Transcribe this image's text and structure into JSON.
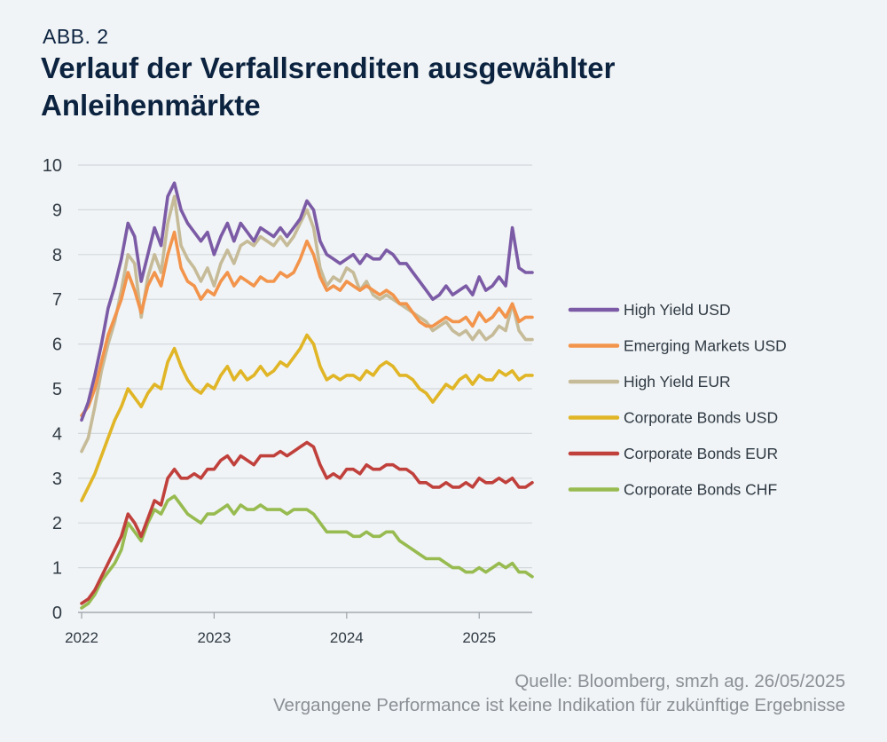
{
  "header": {
    "label": "ABB. 2",
    "title": "Verlauf der Verfallsrenditen ausgewählter Anleihenmärkte"
  },
  "footer": {
    "source": "Quelle: Bloomberg, smzh ag. 26/05/2025",
    "disclaimer": "Vergangene Performance ist keine Indikation für zukünftige Ergebnisse"
  },
  "chart_data": {
    "type": "line",
    "title": "Verlauf der Verfallsrenditen ausgewählter Anleihenmärkte",
    "xlabel": "",
    "ylabel": "",
    "ylim": [
      0,
      10
    ],
    "yticks": [
      "0",
      "1",
      "2",
      "3",
      "4",
      "5",
      "6",
      "7",
      "8",
      "9",
      "10"
    ],
    "xlim": [
      2022.0,
      2025.4
    ],
    "xticks": [
      {
        "value": 2022.0,
        "label": "2022"
      },
      {
        "value": 2023.0,
        "label": "2023"
      },
      {
        "value": 2024.0,
        "label": "2024"
      },
      {
        "value": 2025.0,
        "label": "2025"
      }
    ],
    "grid": true,
    "legend_position": "right",
    "x": [
      2022.0,
      2022.05,
      2022.1,
      2022.15,
      2022.2,
      2022.25,
      2022.3,
      2022.35,
      2022.4,
      2022.45,
      2022.5,
      2022.55,
      2022.6,
      2022.65,
      2022.7,
      2022.75,
      2022.8,
      2022.85,
      2022.9,
      2022.95,
      2023.0,
      2023.05,
      2023.1,
      2023.15,
      2023.2,
      2023.25,
      2023.3,
      2023.35,
      2023.4,
      2023.45,
      2023.5,
      2023.55,
      2023.6,
      2023.65,
      2023.7,
      2023.75,
      2023.8,
      2023.85,
      2023.9,
      2023.95,
      2024.0,
      2024.05,
      2024.1,
      2024.15,
      2024.2,
      2024.25,
      2024.3,
      2024.35,
      2024.4,
      2024.45,
      2024.5,
      2024.55,
      2024.6,
      2024.65,
      2024.7,
      2024.75,
      2024.8,
      2024.85,
      2024.9,
      2024.95,
      2025.0,
      2025.05,
      2025.1,
      2025.15,
      2025.2,
      2025.25,
      2025.3,
      2025.35,
      2025.4
    ],
    "series": [
      {
        "name": "High Yield USD",
        "color": "#7c5ba6",
        "values": [
          4.3,
          4.7,
          5.3,
          6.0,
          6.8,
          7.3,
          7.9,
          8.7,
          8.4,
          7.4,
          8.0,
          8.6,
          8.2,
          9.3,
          9.6,
          9.0,
          8.7,
          8.5,
          8.3,
          8.5,
          8.0,
          8.4,
          8.7,
          8.3,
          8.7,
          8.5,
          8.3,
          8.6,
          8.5,
          8.4,
          8.6,
          8.4,
          8.6,
          8.8,
          9.2,
          9.0,
          8.3,
          8.0,
          7.9,
          7.8,
          7.9,
          8.0,
          7.8,
          8.0,
          7.9,
          7.9,
          8.1,
          8.0,
          7.8,
          7.8,
          7.6,
          7.4,
          7.2,
          7.0,
          7.1,
          7.3,
          7.1,
          7.2,
          7.3,
          7.1,
          7.5,
          7.2,
          7.3,
          7.5,
          7.3,
          8.6,
          7.7,
          7.6,
          7.6
        ]
      },
      {
        "name": "Emerging Markets USD",
        "color": "#f2944b",
        "values": [
          4.4,
          4.6,
          5.0,
          5.6,
          6.2,
          6.6,
          7.0,
          7.6,
          7.2,
          6.7,
          7.3,
          7.6,
          7.3,
          8.0,
          8.5,
          7.7,
          7.4,
          7.3,
          7.0,
          7.2,
          7.1,
          7.4,
          7.6,
          7.3,
          7.5,
          7.4,
          7.3,
          7.5,
          7.4,
          7.4,
          7.6,
          7.5,
          7.6,
          7.9,
          8.3,
          8.0,
          7.5,
          7.2,
          7.3,
          7.2,
          7.4,
          7.3,
          7.2,
          7.3,
          7.2,
          7.1,
          7.2,
          7.1,
          6.9,
          6.9,
          6.7,
          6.5,
          6.4,
          6.4,
          6.5,
          6.6,
          6.5,
          6.5,
          6.6,
          6.4,
          6.7,
          6.5,
          6.6,
          6.8,
          6.6,
          6.9,
          6.5,
          6.6,
          6.6
        ]
      },
      {
        "name": "High Yield EUR",
        "color": "#c6bb98",
        "values": [
          3.6,
          3.9,
          4.6,
          5.4,
          6.0,
          6.5,
          7.2,
          8.0,
          7.8,
          6.6,
          7.5,
          8.0,
          7.6,
          8.7,
          9.3,
          8.2,
          7.9,
          7.7,
          7.4,
          7.7,
          7.3,
          7.8,
          8.1,
          7.8,
          8.2,
          8.3,
          8.2,
          8.4,
          8.3,
          8.2,
          8.4,
          8.2,
          8.4,
          8.7,
          9.0,
          8.6,
          7.7,
          7.3,
          7.5,
          7.4,
          7.7,
          7.6,
          7.2,
          7.4,
          7.1,
          7.0,
          7.1,
          7.0,
          6.9,
          6.8,
          6.7,
          6.6,
          6.5,
          6.3,
          6.4,
          6.5,
          6.3,
          6.2,
          6.3,
          6.1,
          6.3,
          6.1,
          6.2,
          6.4,
          6.3,
          6.9,
          6.3,
          6.1,
          6.1
        ]
      },
      {
        "name": "Corporate Bonds USD",
        "color": "#e0b526",
        "values": [
          2.5,
          2.8,
          3.1,
          3.5,
          3.9,
          4.3,
          4.6,
          5.0,
          4.8,
          4.6,
          4.9,
          5.1,
          5.0,
          5.6,
          5.9,
          5.5,
          5.2,
          5.0,
          4.9,
          5.1,
          5.0,
          5.3,
          5.5,
          5.2,
          5.4,
          5.2,
          5.3,
          5.5,
          5.3,
          5.4,
          5.6,
          5.5,
          5.7,
          5.9,
          6.2,
          6.0,
          5.5,
          5.2,
          5.3,
          5.2,
          5.3,
          5.3,
          5.2,
          5.4,
          5.3,
          5.5,
          5.6,
          5.5,
          5.3,
          5.3,
          5.2,
          5.0,
          4.9,
          4.7,
          4.9,
          5.1,
          5.0,
          5.2,
          5.3,
          5.1,
          5.3,
          5.2,
          5.2,
          5.4,
          5.3,
          5.4,
          5.2,
          5.3,
          5.3
        ]
      },
      {
        "name": "Corporate Bonds EUR",
        "color": "#c0403c",
        "values": [
          0.2,
          0.3,
          0.5,
          0.8,
          1.1,
          1.4,
          1.7,
          2.2,
          2.0,
          1.7,
          2.1,
          2.5,
          2.4,
          3.0,
          3.2,
          3.0,
          3.0,
          3.1,
          3.0,
          3.2,
          3.2,
          3.4,
          3.5,
          3.3,
          3.5,
          3.4,
          3.3,
          3.5,
          3.5,
          3.5,
          3.6,
          3.5,
          3.6,
          3.7,
          3.8,
          3.7,
          3.3,
          3.0,
          3.1,
          3.0,
          3.2,
          3.2,
          3.1,
          3.3,
          3.2,
          3.2,
          3.3,
          3.3,
          3.2,
          3.2,
          3.1,
          2.9,
          2.9,
          2.8,
          2.8,
          2.9,
          2.8,
          2.8,
          2.9,
          2.8,
          3.0,
          2.9,
          2.9,
          3.0,
          2.9,
          3.0,
          2.8,
          2.8,
          2.9
        ]
      },
      {
        "name": "Corporate Bonds CHF",
        "color": "#97bb50",
        "values": [
          0.1,
          0.2,
          0.4,
          0.7,
          0.9,
          1.1,
          1.4,
          2.0,
          1.8,
          1.6,
          2.0,
          2.3,
          2.2,
          2.5,
          2.6,
          2.4,
          2.2,
          2.1,
          2.0,
          2.2,
          2.2,
          2.3,
          2.4,
          2.2,
          2.4,
          2.3,
          2.3,
          2.4,
          2.3,
          2.3,
          2.3,
          2.2,
          2.3,
          2.3,
          2.3,
          2.2,
          2.0,
          1.8,
          1.8,
          1.8,
          1.8,
          1.7,
          1.7,
          1.8,
          1.7,
          1.7,
          1.8,
          1.8,
          1.6,
          1.5,
          1.4,
          1.3,
          1.2,
          1.2,
          1.2,
          1.1,
          1.0,
          1.0,
          0.9,
          0.9,
          1.0,
          0.9,
          1.0,
          1.1,
          1.0,
          1.1,
          0.9,
          0.9,
          0.8
        ]
      }
    ]
  }
}
